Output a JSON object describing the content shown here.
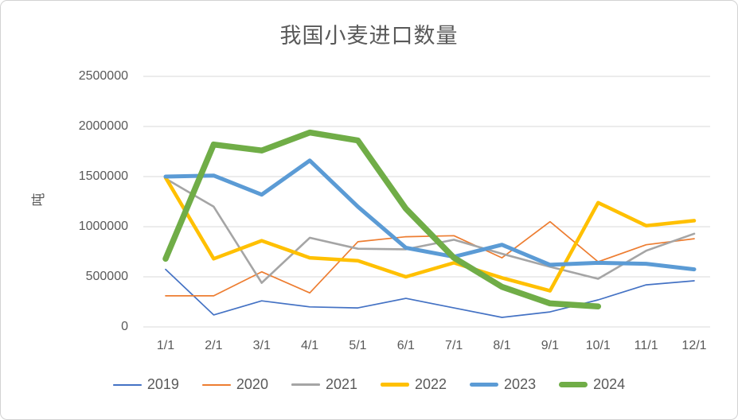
{
  "window": {
    "background": "#FFFFFF",
    "border_color": "#D2D2D2",
    "text_color": "#595959",
    "gridline_color": "#D9D9D9"
  },
  "chart_data": {
    "type": "line",
    "title": "我国小麦进口数量",
    "ylabel": "吨",
    "xlabel": "",
    "grid": true,
    "legend_position": "bottom",
    "ylim": [
      0,
      2500000
    ],
    "y_ticks": [
      2500000,
      2000000,
      1500000,
      1000000,
      500000,
      0
    ],
    "y_tick_labels": [
      "2500000",
      "2000000",
      "1500000",
      "1000000",
      "500000",
      "0"
    ],
    "categories": [
      "1/1",
      "2/1",
      "3/1",
      "4/1",
      "5/1",
      "6/1",
      "7/1",
      "8/1",
      "9/1",
      "10/1",
      "11/1",
      "12/1"
    ],
    "series": [
      {
        "name": "2019",
        "color": "#4472C4",
        "width": 1.7,
        "values": [
          575000,
          120000,
          260000,
          200000,
          190000,
          285000,
          190000,
          95000,
          150000,
          270000,
          420000,
          460000
        ]
      },
      {
        "name": "2020",
        "color": "#ED7D31",
        "width": 1.7,
        "values": [
          310000,
          310000,
          550000,
          340000,
          850000,
          900000,
          910000,
          690000,
          1050000,
          650000,
          820000,
          880000
        ]
      },
      {
        "name": "2021",
        "color": "#A5A5A5",
        "width": 2.6,
        "values": [
          1480000,
          1200000,
          440000,
          890000,
          780000,
          775000,
          870000,
          730000,
          600000,
          480000,
          760000,
          930000
        ]
      },
      {
        "name": "2022",
        "color": "#FFC000",
        "width": 4.5,
        "values": [
          1490000,
          680000,
          860000,
          690000,
          660000,
          500000,
          640000,
          490000,
          360000,
          1240000,
          1010000,
          1060000
        ]
      },
      {
        "name": "2023",
        "color": "#5B9BD5",
        "width": 5,
        "values": [
          1500000,
          1510000,
          1320000,
          1660000,
          1200000,
          790000,
          700000,
          820000,
          620000,
          640000,
          630000,
          575000
        ]
      },
      {
        "name": "2024",
        "color": "#70AD47",
        "width": 7.5,
        "values": [
          680000,
          1820000,
          1760000,
          1940000,
          1860000,
          1180000,
          690000,
          400000,
          235000,
          205000,
          null,
          null
        ]
      }
    ]
  }
}
